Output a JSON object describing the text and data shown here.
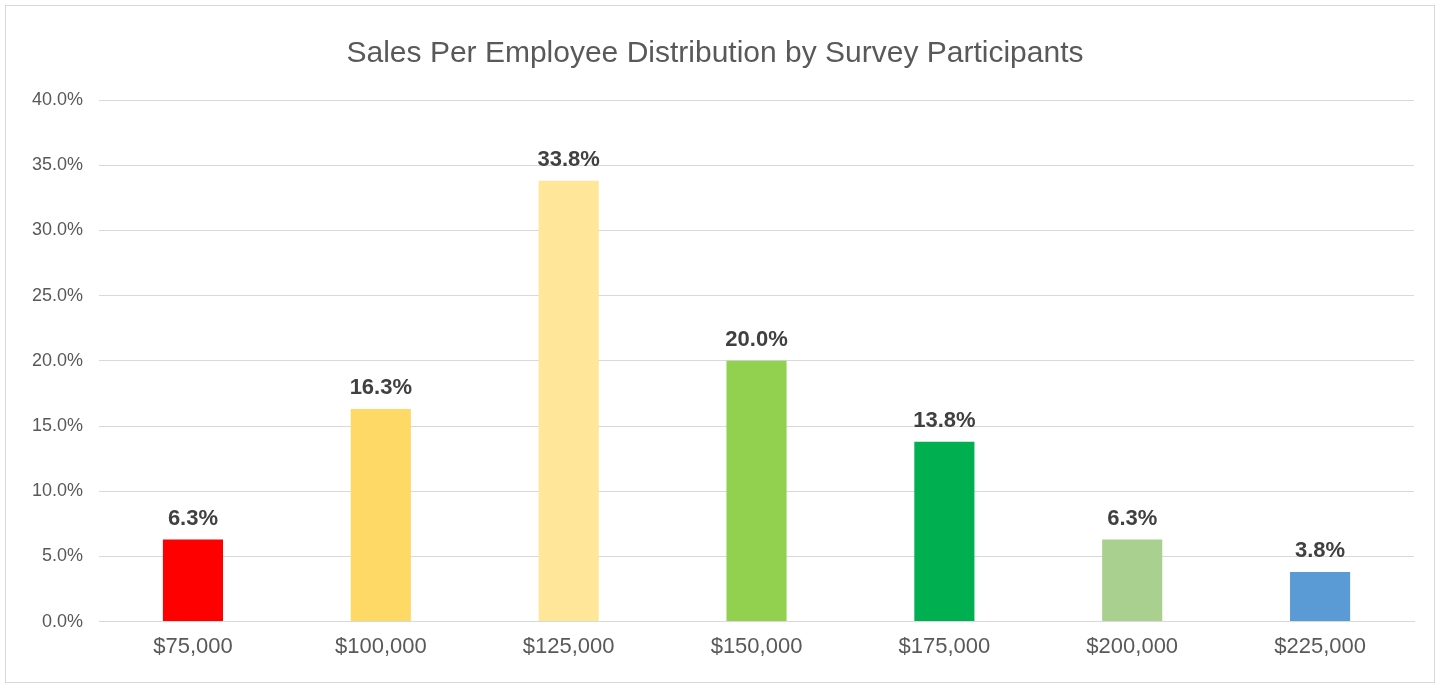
{
  "chart_data": {
    "type": "bar",
    "title": "Sales Per Employee Distribution by Survey Participants",
    "categories": [
      "$75,000",
      "$100,000",
      "$125,000",
      "$150,000",
      "$175,000",
      "$200,000",
      "$225,000"
    ],
    "values": [
      6.3,
      16.3,
      33.8,
      20.0,
      13.8,
      6.3,
      3.8
    ],
    "colors": [
      "#ff0000",
      "#ffd966",
      "#ffe699",
      "#92d050",
      "#00b050",
      "#a9d08e",
      "#5b9bd5"
    ],
    "value_labels": [
      "6.3%",
      "16.3%",
      "33.8%",
      "20.0%",
      "13.8%",
      "6.3%",
      "3.8%"
    ],
    "ylim": [
      0,
      40
    ],
    "yticks": [
      {
        "value": 0,
        "label": "0.0%"
      },
      {
        "value": 5,
        "label": "5.0%"
      },
      {
        "value": 10,
        "label": "10.0%"
      },
      {
        "value": 15,
        "label": "15.0%"
      },
      {
        "value": 20,
        "label": "20.0%"
      },
      {
        "value": 25,
        "label": "25.0%"
      },
      {
        "value": 30,
        "label": "30.0%"
      },
      {
        "value": 35,
        "label": "35.0%"
      },
      {
        "value": 40,
        "label": "40.0%"
      }
    ],
    "grid": "y",
    "legend": false
  }
}
